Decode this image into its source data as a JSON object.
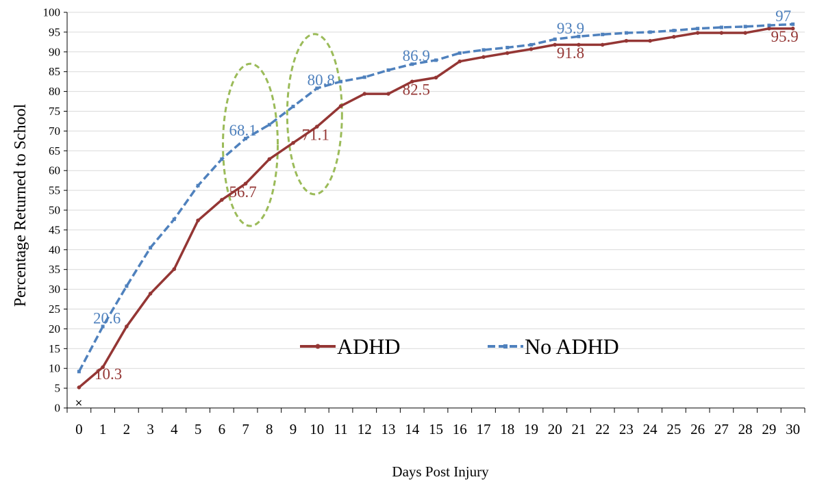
{
  "chart_data": {
    "type": "line",
    "title": "",
    "xlabel": "Days Post Injury",
    "ylabel": "Percentage Returned to School",
    "x": [
      0,
      1,
      2,
      3,
      4,
      5,
      6,
      7,
      8,
      9,
      10,
      11,
      12,
      13,
      14,
      15,
      16,
      17,
      18,
      19,
      20,
      21,
      22,
      23,
      24,
      25,
      26,
      27,
      28,
      29,
      30
    ],
    "xlim": [
      0,
      30
    ],
    "ylim": [
      0,
      100
    ],
    "y_ticks": [
      0,
      5,
      10,
      15,
      20,
      25,
      30,
      35,
      40,
      45,
      50,
      55,
      60,
      65,
      70,
      75,
      80,
      85,
      90,
      95,
      100
    ],
    "grid": "horizontal",
    "legend_position": "bottom-right",
    "series": [
      {
        "name": "ADHD",
        "color": "#943634",
        "style": "solid",
        "values": [
          5.2,
          10.3,
          20.6,
          28.9,
          35.1,
          47.4,
          52.6,
          56.7,
          62.9,
          67.0,
          71.1,
          76.3,
          79.4,
          79.4,
          82.5,
          83.5,
          87.6,
          88.7,
          89.7,
          90.7,
          91.8,
          91.8,
          91.8,
          92.8,
          92.8,
          93.8,
          94.8,
          94.8,
          94.8,
          95.9,
          95.9
        ]
      },
      {
        "name": "No ADHD",
        "color": "#4F81BD",
        "style": "dashed",
        "values": [
          9.2,
          20.6,
          30.8,
          40.5,
          47.7,
          56.2,
          62.9,
          68.1,
          71.6,
          76.2,
          80.8,
          82.5,
          83.6,
          85.4,
          86.9,
          87.9,
          89.7,
          90.5,
          91.1,
          91.8,
          93.2,
          93.9,
          94.4,
          94.8,
          95.0,
          95.4,
          95.9,
          96.2,
          96.4,
          96.7,
          97.0
        ]
      }
    ],
    "annotations": [
      {
        "series": 0,
        "index": 1,
        "text": "10.3"
      },
      {
        "series": 0,
        "index": 7,
        "text": "56.7"
      },
      {
        "series": 0,
        "index": 10,
        "text": "71.1"
      },
      {
        "series": 0,
        "index": 14,
        "text": "82.5"
      },
      {
        "series": 0,
        "index": 21,
        "text": "91.8"
      },
      {
        "series": 0,
        "index": 30,
        "text": "95.9"
      },
      {
        "series": 1,
        "index": 1,
        "text": "20.6"
      },
      {
        "series": 1,
        "index": 7,
        "text": "68.1"
      },
      {
        "series": 1,
        "index": 10,
        "text": "80.8"
      },
      {
        "series": 1,
        "index": 14,
        "text": "86.9"
      },
      {
        "series": 1,
        "index": 21,
        "text": "93.9"
      },
      {
        "series": 1,
        "index": 30,
        "text": "97"
      }
    ],
    "highlight_ellipses": [
      {
        "x": 7.7,
        "y_range": [
          46,
          87
        ],
        "color": "#9BBB59"
      },
      {
        "x": 10.4,
        "y_range": [
          54,
          94.5
        ],
        "color": "#9BBB59"
      }
    ],
    "stray_mark": "×"
  }
}
